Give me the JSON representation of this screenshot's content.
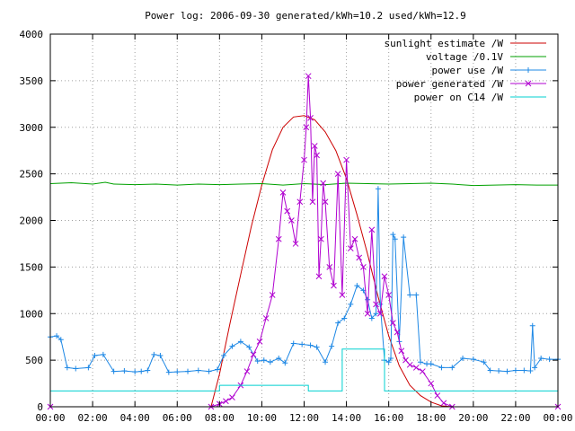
{
  "chart_data": {
    "type": "line",
    "title": "Power log: 2006-09-30 generated/kWh=10.2 used/kWh=12.9",
    "xlabel": "",
    "ylabel": "",
    "x_unit": "hours",
    "xlim": [
      0,
      24
    ],
    "ylim": [
      0,
      4000
    ],
    "grid": true,
    "legend_position": "top-right",
    "x_ticks": [
      {
        "value": 0,
        "label": "00:00"
      },
      {
        "value": 2,
        "label": "02:00"
      },
      {
        "value": 4,
        "label": "04:00"
      },
      {
        "value": 6,
        "label": "06:00"
      },
      {
        "value": 8,
        "label": "08:00"
      },
      {
        "value": 10,
        "label": "10:00"
      },
      {
        "value": 12,
        "label": "12:00"
      },
      {
        "value": 14,
        "label": "14:00"
      },
      {
        "value": 16,
        "label": "16:00"
      },
      {
        "value": 18,
        "label": "18:00"
      },
      {
        "value": 20,
        "label": "20:00"
      },
      {
        "value": 22,
        "label": "22:00"
      },
      {
        "value": 24,
        "label": "00:00"
      }
    ],
    "y_ticks": [
      {
        "value": 0,
        "label": "0"
      },
      {
        "value": 500,
        "label": "500"
      },
      {
        "value": 1000,
        "label": "1000"
      },
      {
        "value": 1500,
        "label": "1500"
      },
      {
        "value": 2000,
        "label": "2000"
      },
      {
        "value": 2500,
        "label": "2500"
      },
      {
        "value": 3000,
        "label": "3000"
      },
      {
        "value": 3500,
        "label": "3500"
      },
      {
        "value": 4000,
        "label": "4000"
      }
    ],
    "series": [
      {
        "name": "sunlight estimate /W",
        "color": "#cc0000",
        "marker": "none",
        "x": [
          0,
          7.6,
          8.0,
          8.5,
          9.0,
          9.5,
          10.0,
          10.5,
          11.0,
          11.5,
          12.0,
          12.5,
          13.0,
          13.5,
          14.0,
          14.5,
          15.0,
          15.5,
          16.0,
          16.5,
          17.0,
          17.5,
          18.0,
          18.5,
          19.0,
          24
        ],
        "y": [
          0,
          0,
          350,
          900,
          1420,
          1930,
          2380,
          2760,
          3000,
          3110,
          3125,
          3080,
          2950,
          2750,
          2450,
          2060,
          1640,
          1180,
          760,
          440,
          230,
          120,
          50,
          10,
          0,
          0
        ]
      },
      {
        "name": "voltage /0.1V",
        "color": "#00a000",
        "marker": "none",
        "x": [
          0,
          1,
          2,
          2.6,
          3,
          4,
          5,
          6,
          7,
          8,
          9,
          10,
          11,
          12,
          13,
          14,
          15,
          16,
          17,
          18,
          19,
          20,
          21,
          22,
          23,
          24
        ],
        "y": [
          2395,
          2405,
          2390,
          2410,
          2390,
          2385,
          2390,
          2380,
          2390,
          2385,
          2390,
          2395,
          2380,
          2395,
          2385,
          2400,
          2395,
          2390,
          2395,
          2400,
          2390,
          2375,
          2380,
          2385,
          2380,
          2380
        ]
      },
      {
        "name": "power use /W",
        "color": "#1e88e5",
        "marker": "plus",
        "x": [
          0,
          0.3,
          0.5,
          0.8,
          1.2,
          1.8,
          2.1,
          2.5,
          3.0,
          3.5,
          4.0,
          4.3,
          4.6,
          4.9,
          5.2,
          5.6,
          6.0,
          6.5,
          7.0,
          7.5,
          7.9,
          8.2,
          8.6,
          9.0,
          9.4,
          9.8,
          10.1,
          10.4,
          10.8,
          11.1,
          11.5,
          11.9,
          12.3,
          12.6,
          13.0,
          13.3,
          13.6,
          13.9,
          14.2,
          14.5,
          14.8,
          15.0,
          15.2,
          15.4,
          15.5,
          15.6,
          15.8,
          16.0,
          16.1,
          16.2,
          16.3,
          16.5,
          16.7,
          17.0,
          17.3,
          17.5,
          17.8,
          18.0,
          18.5,
          19.0,
          19.5,
          20.0,
          20.5,
          20.8,
          21.2,
          21.6,
          22.0,
          22.4,
          22.7,
          22.8,
          22.9,
          23.2,
          23.6,
          24
        ],
        "y": [
          750,
          760,
          720,
          420,
          410,
          420,
          550,
          560,
          380,
          385,
          375,
          380,
          390,
          560,
          550,
          370,
          375,
          380,
          390,
          380,
          400,
          550,
          650,
          700,
          640,
          490,
          500,
          480,
          520,
          470,
          680,
          670,
          660,
          640,
          480,
          650,
          900,
          950,
          1100,
          1300,
          1250,
          1150,
          950,
          1000,
          2340,
          1100,
          500,
          480,
          520,
          1850,
          1800,
          700,
          1820,
          1200,
          1200,
          480,
          460,
          460,
          420,
          420,
          520,
          510,
          480,
          390,
          385,
          380,
          390,
          390,
          385,
          870,
          420,
          520,
          510,
          510
        ]
      },
      {
        "name": "power generated /W",
        "color": "#b000d0",
        "marker": "cross",
        "x": [
          0,
          7.6,
          8.0,
          8.3,
          8.6,
          9.0,
          9.3,
          9.6,
          9.9,
          10.2,
          10.5,
          10.8,
          11.0,
          11.2,
          11.4,
          11.6,
          11.8,
          12.0,
          12.1,
          12.2,
          12.3,
          12.4,
          12.5,
          12.6,
          12.7,
          12.8,
          12.9,
          13.0,
          13.2,
          13.4,
          13.6,
          13.8,
          14.0,
          14.2,
          14.4,
          14.6,
          14.8,
          15.0,
          15.2,
          15.4,
          15.6,
          15.8,
          16.0,
          16.2,
          16.4,
          16.6,
          16.8,
          17.0,
          17.3,
          17.6,
          18.0,
          18.3,
          18.6,
          19.0,
          24
        ],
        "y": [
          0,
          0,
          30,
          60,
          100,
          230,
          380,
          560,
          700,
          950,
          1200,
          1800,
          2300,
          2100,
          2000,
          1750,
          2200,
          2650,
          3000,
          3550,
          3100,
          2200,
          2800,
          2700,
          1400,
          1800,
          2400,
          2200,
          1500,
          1300,
          2500,
          1200,
          2650,
          1700,
          1800,
          1600,
          1500,
          1000,
          1900,
          1100,
          1000,
          1400,
          1200,
          900,
          800,
          600,
          500,
          450,
          420,
          380,
          250,
          120,
          40,
          0,
          0
        ]
      },
      {
        "name": "power on C14 /W",
        "color": "#00d0d0",
        "marker": "none",
        "x": [
          0,
          8.0,
          8.0,
          12.2,
          12.2,
          13.8,
          13.8,
          15.8,
          15.8,
          24
        ],
        "y": [
          170,
          170,
          230,
          230,
          170,
          170,
          620,
          620,
          170,
          170
        ]
      }
    ]
  }
}
